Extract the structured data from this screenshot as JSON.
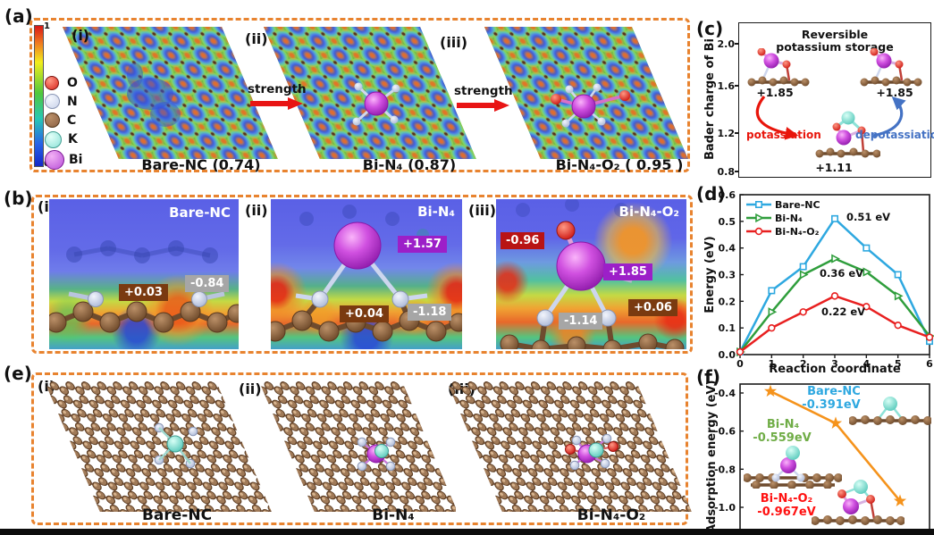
{
  "panel_a": {
    "label": "(a)",
    "colorbar": {
      "max": "1",
      "min": "0"
    },
    "atom_legend": [
      {
        "label": "O",
        "color": "#d9251d"
      },
      {
        "label": "N",
        "color": "#c9d2ea"
      },
      {
        "label": "C",
        "color": "#8a6044"
      },
      {
        "label": "K",
        "color": "#8de2d8"
      },
      {
        "label": "Bi",
        "color": "#b84fd8"
      }
    ],
    "arrow_label_1": "strength",
    "arrow_label_2": "strength",
    "items": [
      {
        "index": "(i)",
        "caption": "Bare-NC (0.74)"
      },
      {
        "index": "(ii)",
        "caption": "Bi-N₄ (0.87)"
      },
      {
        "index": "(iii)",
        "caption": "Bi-N₄-O₂ ( 0.95 )"
      }
    ]
  },
  "panel_b": {
    "label": "(b)",
    "items": [
      {
        "index": "(i)",
        "name": "Bare-NC",
        "badges": [
          {
            "text": "+0.03",
            "color": "#7a3a10"
          },
          {
            "text": "-0.84",
            "color": "#a6a6a6"
          }
        ]
      },
      {
        "index": "(ii)",
        "name": "Bi-N₄",
        "badges": [
          {
            "text": "+1.57",
            "color": "#9c1fc8"
          },
          {
            "text": "+0.04",
            "color": "#7a3a10"
          },
          {
            "text": "-1.18",
            "color": "#a6a6a6"
          }
        ]
      },
      {
        "index": "(iii)",
        "name": "Bi-N₄-O₂",
        "badges": [
          {
            "text": "-0.96",
            "color": "#b81414"
          },
          {
            "text": "+1.85",
            "color": "#9c1fc8"
          },
          {
            "text": "-1.14",
            "color": "#a6a6a6"
          },
          {
            "text": "+0.06",
            "color": "#7a3a10"
          }
        ]
      }
    ]
  },
  "panel_c": {
    "label": "(c)",
    "ylabel": "Bader charge of Bi",
    "yticks": [
      "2.0",
      "1.6",
      "1.2",
      "0.8"
    ],
    "title_line1": "Reversible",
    "title_line2": "potassium storage",
    "state_left_value": "+1.85",
    "state_right_value": "+1.85",
    "state_bottom_value": "+1.11",
    "forward_label": "potassiation",
    "forward_color": "#e8150b",
    "reverse_label": "depotassiation",
    "reverse_color": "#4472c4"
  },
  "panel_d": {
    "label": "(d)"
  },
  "panel_e": {
    "label": "(e)",
    "items": [
      {
        "index": "(i)",
        "caption": "Bare-NC",
        "center_atoms": [
          "K"
        ]
      },
      {
        "index": "(ii)",
        "caption": "Bi-N₄",
        "center_atoms": [
          "Bi",
          "K"
        ]
      },
      {
        "index": "(iii)",
        "caption": "Bi-N₄-O₂",
        "center_atoms": [
          "Bi",
          "K",
          "O",
          "O"
        ]
      }
    ]
  },
  "panel_f": {
    "label": "(f)"
  },
  "chart_data": [
    {
      "id": "d",
      "type": "line",
      "xlabel": "Reaction coordinate",
      "ylabel": "Energy (eV)",
      "x": [
        0,
        1,
        2,
        3,
        4,
        5,
        6
      ],
      "xticks": [
        "0",
        "1",
        "2",
        "3",
        "4",
        "5",
        "6"
      ],
      "yticks": [
        "0.0",
        "0.1",
        "0.2",
        "0.3",
        "0.4",
        "0.5",
        "0.6"
      ],
      "xlim": [
        0,
        6
      ],
      "ylim": [
        0,
        0.6
      ],
      "grid": false,
      "legend_position": "top-left",
      "series": [
        {
          "name": "Bare-NC",
          "color": "#2ea8e0",
          "marker": "square",
          "values": [
            0.01,
            0.24,
            0.33,
            0.51,
            0.4,
            0.3,
            0.05
          ],
          "annotation": "0.51 eV"
        },
        {
          "name": "Bi-N₄",
          "color": "#2f9e3c",
          "marker": "triangle-right",
          "values": [
            0.01,
            0.16,
            0.3,
            0.36,
            0.31,
            0.22,
            0.07
          ],
          "annotation": "0.36 eV"
        },
        {
          "name": "Bi-N₄-O₂",
          "color": "#e82020",
          "marker": "circle",
          "values": [
            0.01,
            0.1,
            0.16,
            0.22,
            0.18,
            0.11,
            0.065
          ],
          "annotation": "0.22 eV"
        }
      ]
    },
    {
      "id": "f",
      "type": "line",
      "xlabel": "",
      "ylabel": "Adsorption energy (eV)",
      "yticks": [
        "-0.4",
        "-0.6",
        "-0.8",
        "-1.0"
      ],
      "ylim": [
        -1.08,
        -0.32
      ],
      "line_color": "#f5931c",
      "marker": "star",
      "points": [
        {
          "name": "Bare-NC",
          "value": -0.391,
          "label": "-0.391eV",
          "color": "#2ea8e0"
        },
        {
          "name": "Bi-N₄",
          "value": -0.559,
          "label": "-0.559eV",
          "color": "#70ad47"
        },
        {
          "name": "Bi-N₄-O₂",
          "value": -0.967,
          "label": "-0.967eV",
          "color": "#ff1111"
        }
      ]
    },
    {
      "id": "c",
      "type": "diagram",
      "ylabel": "Bader charge of Bi",
      "yticks": [
        "2.0",
        "1.6",
        "1.2",
        "0.8"
      ],
      "ylim": [
        0.8,
        2.0
      ],
      "values": {
        "depotassiated_bader_charge": 1.85,
        "potassiated_bader_charge": 1.11
      }
    }
  ]
}
